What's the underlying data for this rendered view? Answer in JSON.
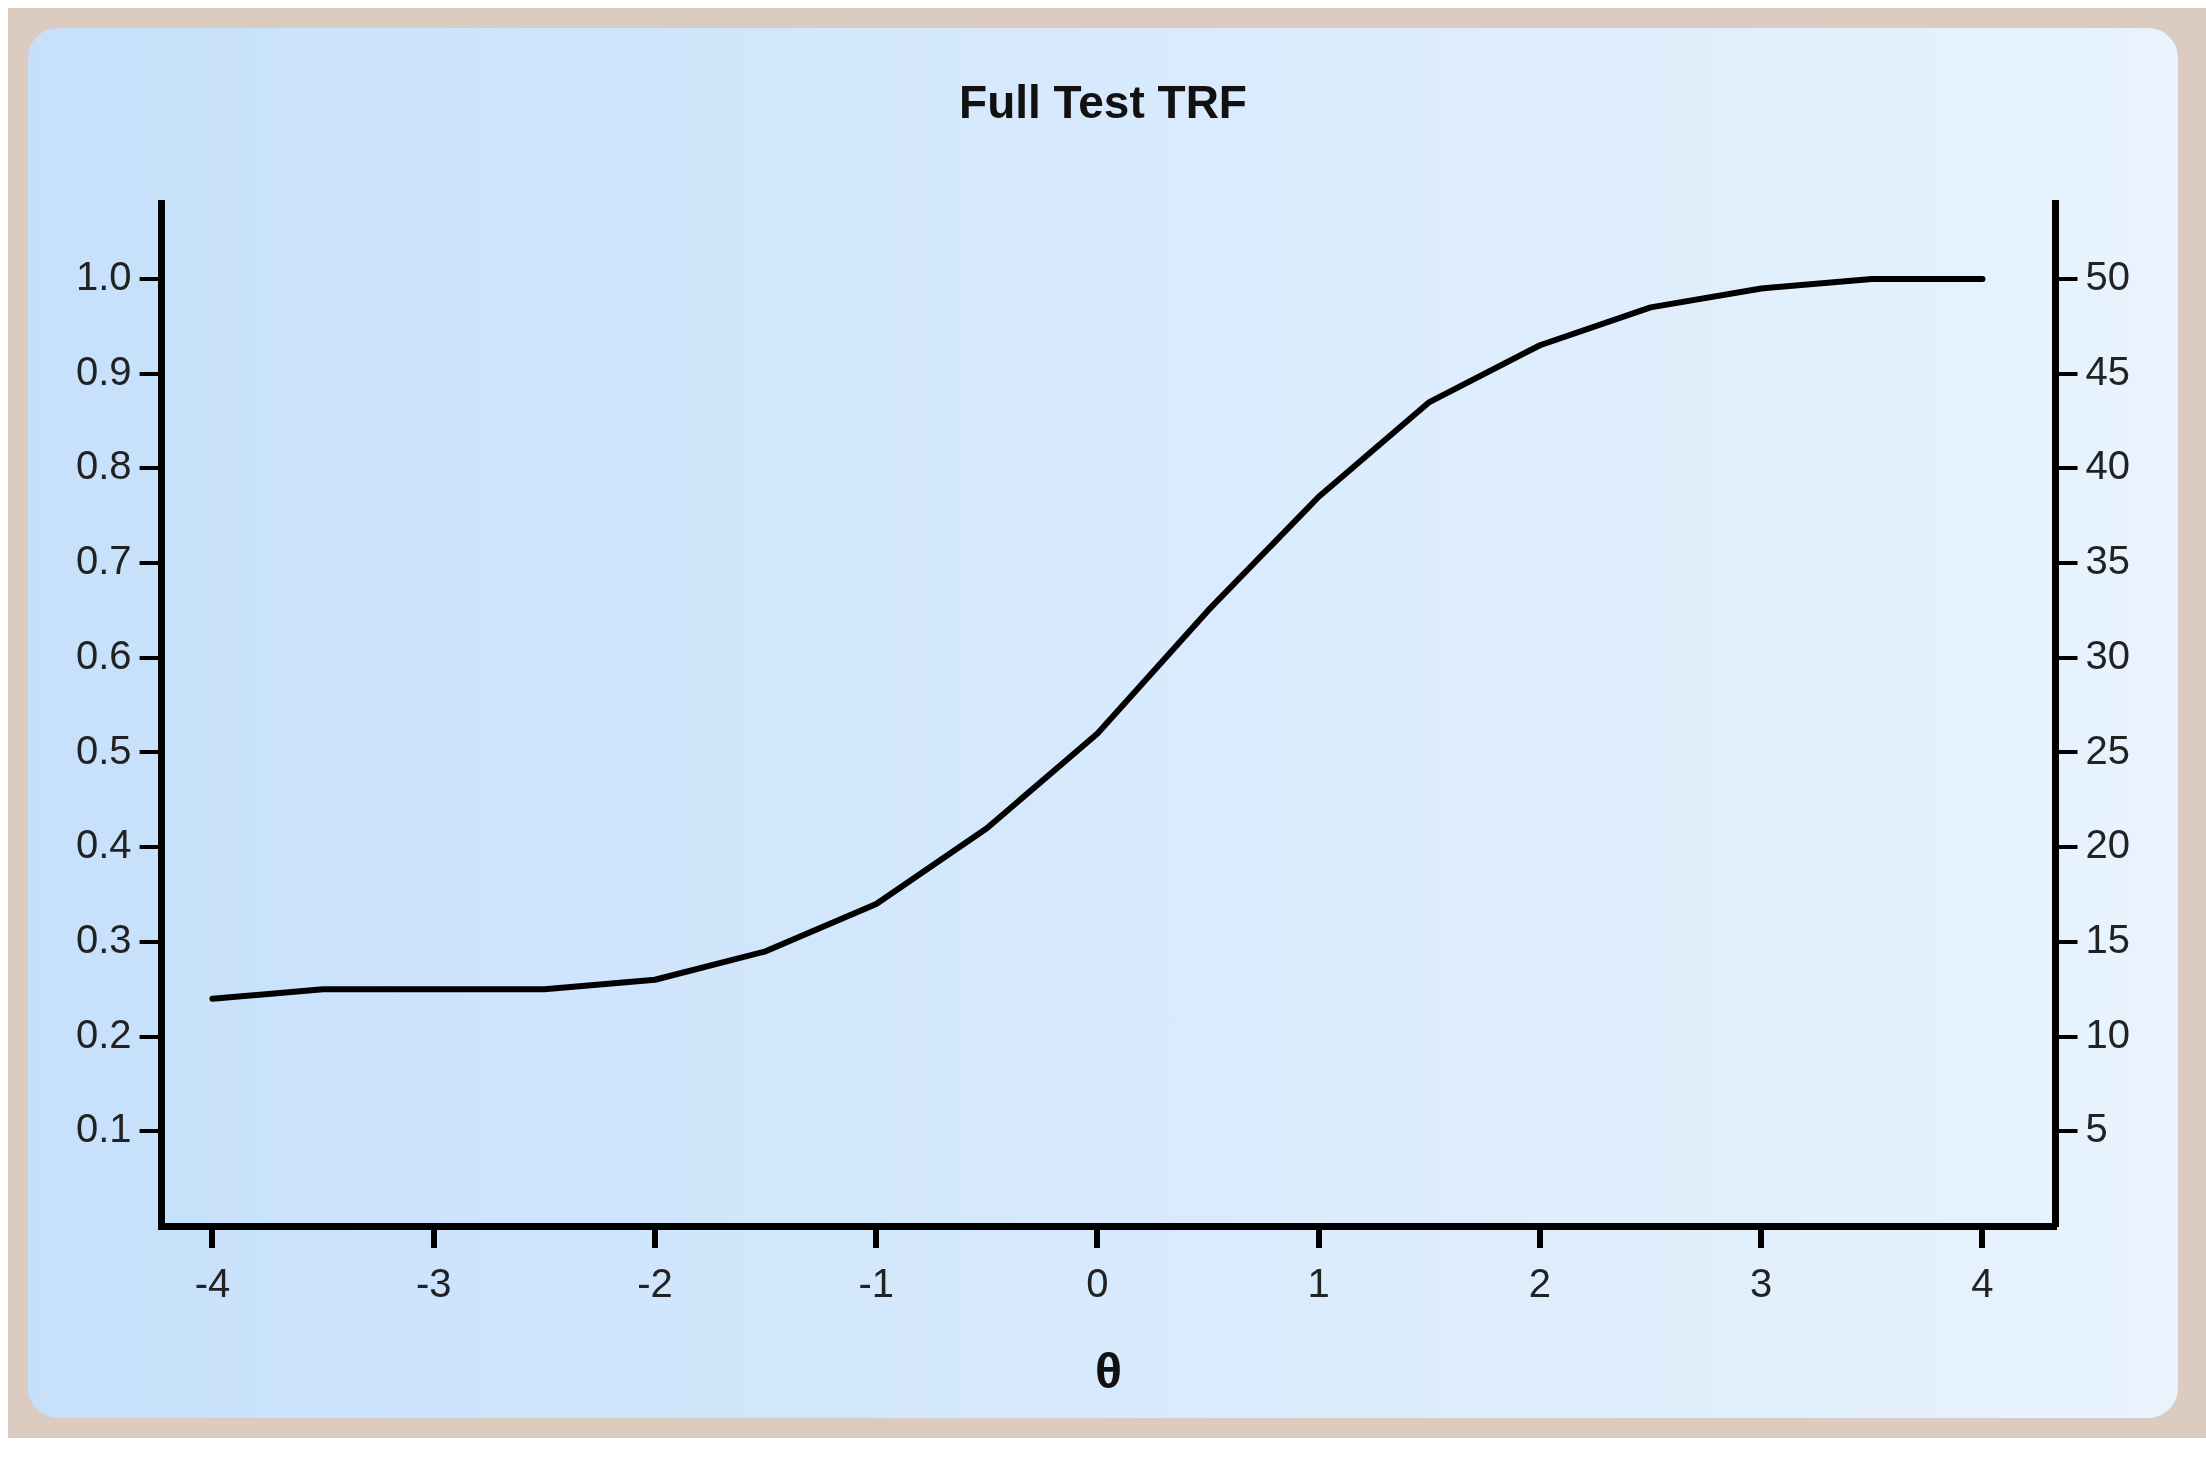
{
  "chart_data": {
    "type": "line",
    "title": "Full Test TRF",
    "xlabel": "θ",
    "x": [
      -4,
      -3.5,
      -3,
      -2.5,
      -2,
      -1.5,
      -1,
      -0.5,
      0,
      0.5,
      1,
      1.5,
      2,
      2.5,
      3,
      3.5,
      4
    ],
    "series": [
      {
        "color": "#000000",
        "values": [
          0.24,
          0.25,
          0.25,
          0.25,
          0.26,
          0.29,
          0.34,
          0.42,
          0.52,
          0.65,
          0.77,
          0.87,
          0.93,
          0.97,
          0.99,
          1.0,
          1.0
        ]
      }
    ],
    "xlim": [
      -4.23,
      4.33
    ],
    "xticks": [
      -4,
      -3,
      -2,
      -1,
      0,
      1,
      2,
      3,
      4
    ],
    "ylim": [
      0,
      1.08
    ],
    "yticks": [
      {
        "value": 0.1,
        "label": "0.1"
      },
      {
        "value": 0.2,
        "label": "0.2"
      },
      {
        "value": 0.3,
        "label": "0.3"
      },
      {
        "value": 0.4,
        "label": "0.4"
      },
      {
        "value": 0.5,
        "label": "0.5"
      },
      {
        "value": 0.6,
        "label": "0.6"
      },
      {
        "value": 0.7,
        "label": "0.7"
      },
      {
        "value": 0.8,
        "label": "0.8"
      },
      {
        "value": 0.9,
        "label": "0.9"
      },
      {
        "value": 1.0,
        "label": "1.0"
      }
    ],
    "y2lim": [
      0,
      54
    ],
    "y2ticks": [
      5,
      10,
      15,
      20,
      25,
      30,
      35,
      40,
      45,
      50
    ],
    "grid": false,
    "legend": false,
    "marker": "none",
    "line_style": "solid"
  }
}
